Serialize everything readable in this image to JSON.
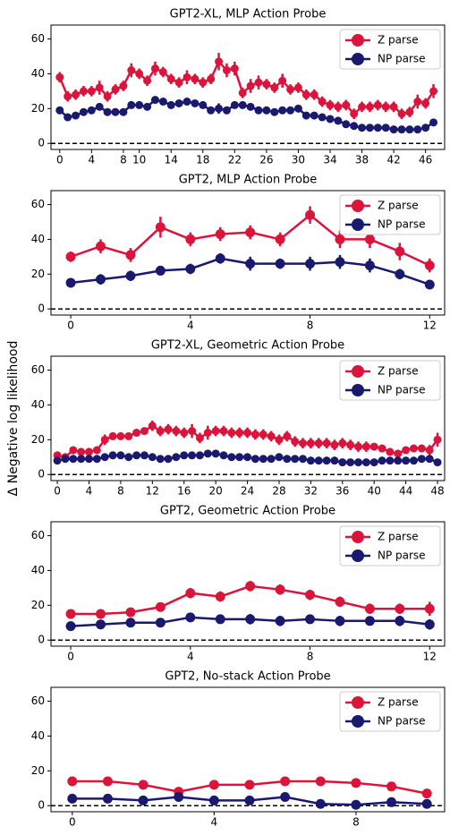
{
  "chart_data": [
    {
      "type": "line",
      "title": "GPT2-XL, MLP Action Probe",
      "x": [
        0,
        1,
        2,
        3,
        4,
        5,
        6,
        7,
        8,
        9,
        10,
        11,
        12,
        13,
        14,
        15,
        16,
        17,
        18,
        19,
        20,
        21,
        22,
        23,
        24,
        25,
        26,
        27,
        28,
        29,
        30,
        31,
        32,
        33,
        34,
        35,
        36,
        37,
        38,
        39,
        40,
        41,
        42,
        43,
        44,
        45,
        46,
        47
      ],
      "series": [
        {
          "name": "Z parse",
          "color": "#dc143c",
          "values": [
            38,
            27,
            28,
            30,
            30,
            32,
            27,
            31,
            33,
            42,
            40,
            36,
            43,
            41,
            37,
            35,
            38,
            37,
            35,
            37,
            47,
            42,
            43,
            29,
            33,
            35,
            34,
            32,
            36,
            31,
            32,
            28,
            28,
            24,
            22,
            21,
            22,
            17,
            21,
            21,
            22,
            21,
            21,
            17,
            18,
            24,
            23,
            30
          ],
          "errors": [
            3,
            3,
            3,
            3,
            3,
            4,
            3,
            3,
            3,
            4,
            3,
            3,
            4,
            3,
            3,
            3,
            4,
            3,
            3,
            3,
            5,
            4,
            4,
            3,
            4,
            4,
            3,
            3,
            4,
            3,
            3,
            3,
            3,
            3,
            3,
            3,
            3,
            3,
            3,
            3,
            3,
            3,
            3,
            3,
            3,
            4,
            3,
            4
          ]
        },
        {
          "name": "NP parse",
          "color": "#191970",
          "values": [
            19,
            15,
            16,
            18,
            19,
            21,
            18,
            18,
            18,
            22,
            22,
            21,
            25,
            24,
            22,
            23,
            24,
            23,
            22,
            19,
            20,
            19,
            22,
            22,
            21,
            19,
            19,
            18,
            19,
            19,
            20,
            16,
            16,
            15,
            14,
            13,
            11,
            10,
            9,
            9,
            9,
            9,
            8,
            8,
            8,
            8,
            9,
            12
          ],
          "errors": [
            2,
            2,
            2,
            2,
            2,
            2,
            2,
            2,
            2,
            2,
            2,
            2,
            2,
            2,
            2,
            2,
            2,
            2,
            2,
            2,
            3,
            2,
            2,
            2,
            2,
            2,
            2,
            2,
            2,
            2,
            2,
            2,
            2,
            2,
            2,
            2,
            2,
            2,
            2,
            2,
            2,
            2,
            2,
            2,
            2,
            2,
            2,
            2
          ]
        }
      ],
      "xlim": [
        -1.1,
        48.4
      ],
      "xticks": [
        0,
        4,
        8,
        10,
        14,
        18,
        22,
        26,
        30,
        34,
        38,
        42,
        46
      ],
      "ylim": [
        -3.5,
        68
      ],
      "yticks": [
        0,
        20,
        40,
        60
      ],
      "hline": 0,
      "legend": "upper right"
    },
    {
      "type": "line",
      "title": "GPT2, MLP Action Probe",
      "x": [
        0,
        1,
        2,
        3,
        4,
        5,
        6,
        7,
        8,
        9,
        10,
        11,
        12
      ],
      "series": [
        {
          "name": "Z parse",
          "color": "#dc143c",
          "values": [
            30,
            36,
            31,
            47,
            40,
            43,
            44,
            40,
            54,
            40,
            40,
            33,
            25
          ],
          "errors": [
            3,
            4,
            4,
            6,
            4,
            4,
            4,
            4,
            5,
            5,
            5,
            5,
            4
          ]
        },
        {
          "name": "NP parse",
          "color": "#191970",
          "values": [
            15,
            17,
            19,
            22,
            23,
            29,
            26,
            26,
            26,
            27,
            25,
            20,
            14
          ],
          "errors": [
            2,
            3,
            3,
            2,
            3,
            3,
            4,
            3,
            4,
            4,
            4,
            3,
            2
          ]
        }
      ],
      "xlim": [
        -0.66,
        12.5
      ],
      "xticks": [
        0,
        4,
        8,
        12
      ],
      "ylim": [
        -3.5,
        68
      ],
      "yticks": [
        0,
        20,
        40,
        60
      ],
      "hline": 0,
      "legend": "upper right"
    },
    {
      "type": "line",
      "title": "GPT2-XL, Geometric Action Probe",
      "ylabel": "Δ Negative log likelihood",
      "x": [
        0,
        1,
        2,
        3,
        4,
        5,
        6,
        7,
        8,
        9,
        10,
        11,
        12,
        13,
        14,
        15,
        16,
        17,
        18,
        19,
        20,
        21,
        22,
        23,
        24,
        25,
        26,
        27,
        28,
        29,
        30,
        31,
        32,
        33,
        34,
        35,
        36,
        37,
        38,
        39,
        40,
        41,
        42,
        43,
        44,
        45,
        46,
        47,
        48
      ],
      "series": [
        {
          "name": "Z parse",
          "color": "#dc143c",
          "values": [
            11,
            10,
            14,
            13,
            13,
            14,
            20,
            22,
            22,
            22,
            24,
            25,
            28,
            25,
            26,
            25,
            24,
            25,
            21,
            24,
            25,
            25,
            24,
            24,
            24,
            23,
            23,
            22,
            20,
            22,
            19,
            18,
            18,
            18,
            18,
            17,
            18,
            17,
            16,
            16,
            16,
            15,
            13,
            12,
            14,
            15,
            15,
            14,
            20
          ],
          "errors": [
            2,
            2,
            2,
            2,
            2,
            2,
            3,
            2,
            2,
            2,
            2,
            2,
            3,
            3,
            3,
            3,
            3,
            4,
            3,
            4,
            3,
            3,
            3,
            3,
            3,
            3,
            3,
            3,
            3,
            3,
            3,
            3,
            3,
            3,
            3,
            3,
            3,
            3,
            3,
            3,
            2,
            2,
            2,
            2,
            2,
            2,
            2,
            3,
            4
          ]
        },
        {
          "name": "NP parse",
          "color": "#191970",
          "values": [
            8,
            9,
            9,
            9,
            9,
            9,
            10,
            11,
            11,
            10,
            11,
            11,
            10,
            9,
            9,
            10,
            11,
            11,
            11,
            12,
            12,
            11,
            10,
            10,
            10,
            9,
            9,
            9,
            10,
            9,
            9,
            9,
            8,
            8,
            8,
            8,
            7,
            7,
            7,
            7,
            7,
            8,
            8,
            8,
            8,
            8,
            9,
            9,
            7
          ],
          "errors": [
            2,
            2,
            2,
            2,
            2,
            2,
            2,
            2,
            2,
            2,
            2,
            2,
            2,
            2,
            2,
            2,
            2,
            2,
            2,
            2,
            2,
            2,
            2,
            2,
            2,
            2,
            2,
            2,
            2,
            2,
            2,
            2,
            2,
            2,
            2,
            2,
            2,
            2,
            2,
            2,
            2,
            2,
            2,
            2,
            2,
            2,
            2,
            2,
            2
          ]
        }
      ],
      "xlim": [
        -0.8,
        48.9
      ],
      "xticks": [
        0,
        4,
        8,
        12,
        16,
        20,
        24,
        28,
        32,
        36,
        40,
        44,
        48
      ],
      "ylim": [
        -3.5,
        68
      ],
      "yticks": [
        0,
        20,
        40,
        60
      ],
      "hline": 0,
      "legend": "upper right"
    },
    {
      "type": "line",
      "title": "GPT2, Geometric Action Probe",
      "x": [
        0,
        1,
        2,
        3,
        4,
        5,
        6,
        7,
        8,
        9,
        10,
        11,
        12
      ],
      "series": [
        {
          "name": "Z parse",
          "color": "#dc143c",
          "values": [
            15,
            15,
            16,
            19,
            27,
            25,
            31,
            29,
            26,
            22,
            18,
            18,
            18
          ],
          "errors": [
            2,
            2,
            2,
            2,
            3,
            3,
            3,
            3,
            3,
            3,
            3,
            3,
            4
          ]
        },
        {
          "name": "NP parse",
          "color": "#191970",
          "values": [
            8,
            9,
            10,
            10,
            13,
            12,
            12,
            11,
            12,
            11,
            11,
            11,
            9
          ],
          "errors": [
            2,
            2,
            2,
            2,
            2,
            2,
            3,
            3,
            2,
            3,
            2,
            3,
            3
          ]
        }
      ],
      "xlim": [
        -0.66,
        12.5
      ],
      "xticks": [
        0,
        4,
        8,
        12
      ],
      "ylim": [
        -3.5,
        68
      ],
      "yticks": [
        0,
        20,
        40,
        60
      ],
      "hline": 0,
      "legend": "upper right"
    },
    {
      "type": "line",
      "title": "GPT2, No-stack Action Probe",
      "x": [
        0,
        1,
        2,
        3,
        4,
        5,
        6,
        7,
        8,
        9,
        10
      ],
      "series": [
        {
          "name": "Z parse",
          "color": "#dc143c",
          "values": [
            14,
            14,
            12,
            8,
            12,
            12,
            14,
            14,
            13,
            11,
            7
          ],
          "errors": [
            1,
            1,
            1,
            1,
            1,
            1,
            1,
            1,
            1,
            1,
            1
          ]
        },
        {
          "name": "NP parse",
          "color": "#191970",
          "values": [
            4,
            4,
            3,
            5,
            3,
            3,
            5,
            1,
            0.5,
            2,
            1
          ],
          "errors": [
            1,
            1,
            1,
            1,
            1,
            1,
            1,
            1,
            1,
            1,
            1
          ]
        }
      ],
      "xlim": [
        -0.6,
        10.5
      ],
      "xticks": [
        0,
        4,
        8
      ],
      "ylim": [
        -3.5,
        68
      ],
      "yticks": [
        0,
        20,
        40,
        60
      ],
      "hline": 0,
      "legend": "upper right"
    }
  ]
}
